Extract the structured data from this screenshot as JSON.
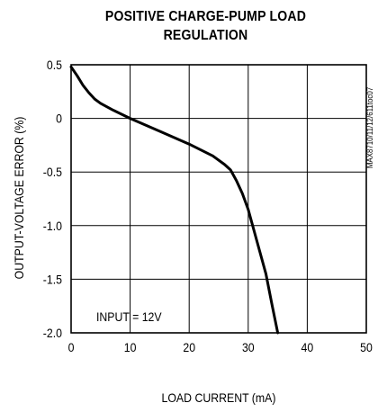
{
  "chart_data": {
    "type": "line",
    "title_lines": [
      "POSITIVE CHARGE-PUMP LOAD",
      "REGULATION"
    ],
    "xlabel": "LOAD CURRENT (mA)",
    "ylabel": "OUTPUT-VOLTAGE ERROR (%)",
    "xlim": [
      0,
      50
    ],
    "ylim": [
      -2.0,
      0.5
    ],
    "x_ticks": [
      0,
      10,
      20,
      30,
      40,
      50
    ],
    "x_tick_labels": [
      "0",
      "10",
      "20",
      "30",
      "40",
      "50"
    ],
    "y_ticks": [
      0.5,
      0,
      -0.5,
      -1.0,
      -1.5,
      -2.0
    ],
    "y_tick_labels": [
      "0.5",
      "0",
      "-0.5",
      "-1.0",
      "-1.5",
      "-2.0"
    ],
    "grid": true,
    "annotation": "INPUT = 12V",
    "side_label": "MAX8710/11/12/611toc07",
    "series": [
      {
        "x": [
          0,
          1,
          2,
          3,
          4,
          5,
          7,
          10,
          15,
          20,
          24,
          26,
          27,
          28,
          29,
          30,
          31,
          32,
          33,
          34,
          35
        ],
        "y": [
          0.48,
          0.4,
          0.31,
          0.24,
          0.18,
          0.14,
          0.08,
          0.0,
          -0.12,
          -0.24,
          -0.35,
          -0.43,
          -0.48,
          -0.58,
          -0.7,
          -0.85,
          -1.05,
          -1.25,
          -1.45,
          -1.73,
          -2.0
        ],
        "color": "#000000"
      }
    ]
  }
}
